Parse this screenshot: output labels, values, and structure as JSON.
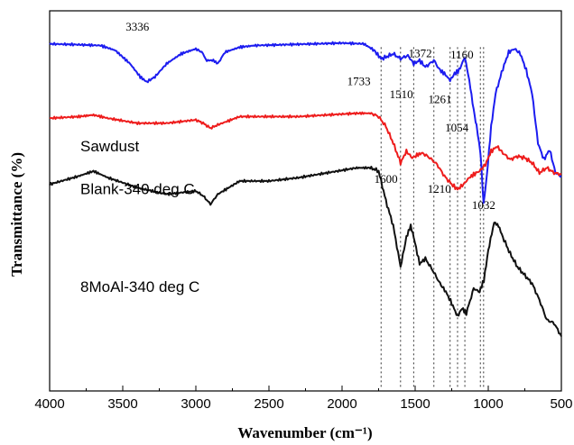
{
  "chart_data": {
    "type": "line",
    "xlabel": "Wavenumber (cm⁻¹)",
    "ylabel": "Transmittance (%)",
    "xlim": [
      4000,
      500
    ],
    "x_reversed": true,
    "x_ticks": [
      4000,
      3500,
      3000,
      2500,
      2000,
      1500,
      1000,
      500
    ],
    "y_ticks_shown": false,
    "grid": false,
    "legend": "none",
    "series": [
      {
        "name": "Sawdust",
        "color": "#1c1cf0",
        "offset": 130,
        "points": [
          [
            4000,
            0
          ],
          [
            3800,
            -0.5
          ],
          [
            3650,
            -1
          ],
          [
            3550,
            -4
          ],
          [
            3450,
            -12
          ],
          [
            3380,
            -20
          ],
          [
            3336,
            -23
          ],
          [
            3280,
            -20
          ],
          [
            3200,
            -12
          ],
          [
            3100,
            -6
          ],
          [
            3000,
            -3
          ],
          [
            2960,
            -5
          ],
          [
            2925,
            -10
          ],
          [
            2880,
            -10
          ],
          [
            2850,
            -12
          ],
          [
            2800,
            -5
          ],
          [
            2700,
            -2
          ],
          [
            2600,
            -1
          ],
          [
            2400,
            -0.5
          ],
          [
            2200,
            0
          ],
          [
            2000,
            0.5
          ],
          [
            1850,
            0
          ],
          [
            1780,
            -4
          ],
          [
            1733,
            -9
          ],
          [
            1700,
            -8
          ],
          [
            1650,
            -6
          ],
          [
            1600,
            -9
          ],
          [
            1550,
            -7
          ],
          [
            1510,
            -12
          ],
          [
            1470,
            -10
          ],
          [
            1430,
            -14
          ],
          [
            1372,
            -10
          ],
          [
            1330,
            -16
          ],
          [
            1300,
            -18
          ],
          [
            1261,
            -22
          ],
          [
            1230,
            -18
          ],
          [
            1200,
            -16
          ],
          [
            1160,
            -8
          ],
          [
            1130,
            -22
          ],
          [
            1100,
            -40
          ],
          [
            1080,
            -50
          ],
          [
            1054,
            -65
          ],
          [
            1040,
            -85
          ],
          [
            1032,
            -97
          ],
          [
            1010,
            -80
          ],
          [
            980,
            -50
          ],
          [
            950,
            -30
          ],
          [
            900,
            -15
          ],
          [
            860,
            -5
          ],
          [
            820,
            -3
          ],
          [
            780,
            -6
          ],
          [
            740,
            -16
          ],
          [
            700,
            -30
          ],
          [
            660,
            -60
          ],
          [
            620,
            -70
          ],
          [
            580,
            -64
          ],
          [
            540,
            -78
          ],
          [
            500,
            -80
          ]
        ]
      },
      {
        "name": "Blank-340 deg C",
        "color": "#ee1c1c",
        "offset": 85,
        "points": [
          [
            4000,
            0
          ],
          [
            3800,
            1
          ],
          [
            3700,
            2
          ],
          [
            3600,
            0
          ],
          [
            3400,
            -3
          ],
          [
            3200,
            -3
          ],
          [
            3000,
            -1
          ],
          [
            2950,
            -3
          ],
          [
            2900,
            -6
          ],
          [
            2850,
            -4
          ],
          [
            2700,
            1
          ],
          [
            2500,
            1
          ],
          [
            2300,
            1
          ],
          [
            2100,
            2
          ],
          [
            1900,
            3
          ],
          [
            1800,
            3
          ],
          [
            1750,
            1
          ],
          [
            1700,
            -5
          ],
          [
            1650,
            -15
          ],
          [
            1600,
            -27
          ],
          [
            1560,
            -20
          ],
          [
            1520,
            -24
          ],
          [
            1480,
            -22
          ],
          [
            1450,
            -21
          ],
          [
            1400,
            -24
          ],
          [
            1350,
            -28
          ],
          [
            1300,
            -35
          ],
          [
            1250,
            -40
          ],
          [
            1210,
            -43
          ],
          [
            1170,
            -40
          ],
          [
            1130,
            -36
          ],
          [
            1100,
            -34
          ],
          [
            1060,
            -32
          ],
          [
            1020,
            -28
          ],
          [
            980,
            -20
          ],
          [
            940,
            -17
          ],
          [
            900,
            -21
          ],
          [
            850,
            -25
          ],
          [
            800,
            -23
          ],
          [
            750,
            -24
          ],
          [
            700,
            -27
          ],
          [
            650,
            -33
          ],
          [
            600,
            -30
          ],
          [
            550,
            -33
          ],
          [
            500,
            -34
          ]
        ]
      },
      {
        "name": "8MoAl-340 deg C",
        "color": "#111111",
        "offset": 45,
        "points": [
          [
            4000,
            0
          ],
          [
            3800,
            5
          ],
          [
            3700,
            8
          ],
          [
            3600,
            4
          ],
          [
            3400,
            -2
          ],
          [
            3200,
            -6
          ],
          [
            3000,
            -4
          ],
          [
            2950,
            -7
          ],
          [
            2900,
            -12
          ],
          [
            2850,
            -6
          ],
          [
            2700,
            2
          ],
          [
            2500,
            2
          ],
          [
            2300,
            4
          ],
          [
            2100,
            7
          ],
          [
            1900,
            10
          ],
          [
            1800,
            10
          ],
          [
            1750,
            8
          ],
          [
            1700,
            -10
          ],
          [
            1650,
            -25
          ],
          [
            1600,
            -50
          ],
          [
            1560,
            -32
          ],
          [
            1530,
            -25
          ],
          [
            1510,
            -32
          ],
          [
            1470,
            -48
          ],
          [
            1430,
            -45
          ],
          [
            1380,
            -52
          ],
          [
            1330,
            -60
          ],
          [
            1290,
            -65
          ],
          [
            1250,
            -72
          ],
          [
            1210,
            -80
          ],
          [
            1180,
            -75
          ],
          [
            1150,
            -78
          ],
          [
            1100,
            -63
          ],
          [
            1060,
            -65
          ],
          [
            1030,
            -58
          ],
          [
            1000,
            -40
          ],
          [
            960,
            -23
          ],
          [
            930,
            -25
          ],
          [
            900,
            -32
          ],
          [
            850,
            -42
          ],
          [
            800,
            -50
          ],
          [
            750,
            -55
          ],
          [
            700,
            -60
          ],
          [
            650,
            -70
          ],
          [
            600,
            -82
          ],
          [
            550,
            -84
          ],
          [
            500,
            -92
          ]
        ]
      }
    ],
    "series_labels": [
      {
        "text": "Sawdust",
        "x": 3790,
        "y": 65
      },
      {
        "text": "Blank-340 deg C",
        "x": 3790,
        "y": 39
      },
      {
        "text": "8MoAl-340 deg C",
        "x": 3790,
        "y": -20
      }
    ],
    "peak_markers": [
      1733,
      1600,
      1510,
      1372,
      1261,
      1210,
      1160,
      1054,
      1032
    ],
    "peak_labels": [
      {
        "text": "3336",
        "x": 3400,
        "y": 138
      },
      {
        "text": "1733",
        "x": 1885,
        "y": 105
      },
      {
        "text": "1510",
        "x": 1595,
        "y": 97
      },
      {
        "text": "1372",
        "x": 1465,
        "y": 122
      },
      {
        "text": "1261",
        "x": 1330,
        "y": 94
      },
      {
        "text": "1160",
        "x": 1180,
        "y": 121
      },
      {
        "text": "1054",
        "x": 1215,
        "y": 77
      },
      {
        "text": "1032",
        "x": 1032,
        "y": 30
      },
      {
        "text": "1600",
        "x": 1700,
        "y": 46
      },
      {
        "text": "1210",
        "x": 1335,
        "y": 40
      }
    ],
    "y_range": [
      -80,
      150
    ]
  }
}
